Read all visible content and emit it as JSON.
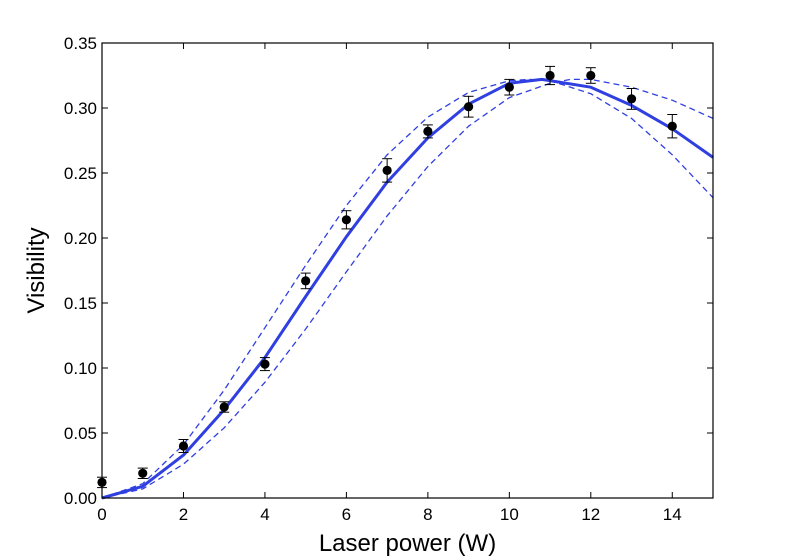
{
  "chart_data": {
    "type": "scatter",
    "xlabel": "Laser power (W)",
    "ylabel": "Visibility",
    "xlim": [
      0,
      15
    ],
    "ylim": [
      0,
      0.35
    ],
    "x_ticks": [
      0,
      2,
      4,
      6,
      8,
      10,
      12,
      14
    ],
    "y_ticks": [
      0.0,
      0.05,
      0.1,
      0.15,
      0.2,
      0.25,
      0.3,
      0.35
    ],
    "x_tick_labels": [
      "0",
      "2",
      "4",
      "6",
      "8",
      "10",
      "12",
      "14"
    ],
    "y_tick_labels": [
      "0.00",
      "0.05",
      "0.10",
      "0.15",
      "0.20",
      "0.25",
      "0.30",
      "0.35"
    ],
    "grid": false,
    "points": [
      {
        "x": 0,
        "y": 0.012,
        "err": 0.004
      },
      {
        "x": 1,
        "y": 0.019,
        "err": 0.004
      },
      {
        "x": 2,
        "y": 0.04,
        "err": 0.005
      },
      {
        "x": 3,
        "y": 0.07,
        "err": 0.004
      },
      {
        "x": 4,
        "y": 0.103,
        "err": 0.005
      },
      {
        "x": 5,
        "y": 0.167,
        "err": 0.006
      },
      {
        "x": 6,
        "y": 0.214,
        "err": 0.007
      },
      {
        "x": 7,
        "y": 0.252,
        "err": 0.009
      },
      {
        "x": 8,
        "y": 0.282,
        "err": 0.005
      },
      {
        "x": 9,
        "y": 0.301,
        "err": 0.008
      },
      {
        "x": 10,
        "y": 0.316,
        "err": 0.006
      },
      {
        "x": 11,
        "y": 0.325,
        "err": 0.007
      },
      {
        "x": 12,
        "y": 0.325,
        "err": 0.006
      },
      {
        "x": 13,
        "y": 0.307,
        "err": 0.008
      },
      {
        "x": 14,
        "y": 0.286,
        "err": 0.009
      }
    ],
    "curves": [
      {
        "style": "solid",
        "x": [
          0,
          1,
          2,
          3,
          4,
          5,
          6,
          7,
          8,
          9,
          10,
          10.8,
          12,
          13,
          14,
          15
        ],
        "y": [
          0.0,
          0.009,
          0.033,
          0.068,
          0.108,
          0.155,
          0.201,
          0.243,
          0.277,
          0.303,
          0.319,
          0.322,
          0.316,
          0.302,
          0.284,
          0.262
        ]
      },
      {
        "style": "dashed",
        "x": [
          0,
          1,
          2,
          3,
          4,
          5,
          6,
          7,
          8,
          9,
          10,
          10.5,
          11,
          12,
          13,
          14,
          15
        ],
        "y": [
          0.0,
          0.011,
          0.041,
          0.083,
          0.131,
          0.179,
          0.225,
          0.264,
          0.293,
          0.312,
          0.321,
          0.322,
          0.321,
          0.311,
          0.292,
          0.264,
          0.231
        ]
      },
      {
        "style": "dashed",
        "x": [
          0,
          1,
          2,
          3,
          4,
          5,
          6,
          7,
          8,
          9,
          10,
          11,
          11.5,
          12,
          13,
          14,
          15
        ],
        "y": [
          0.0,
          0.007,
          0.026,
          0.054,
          0.089,
          0.13,
          0.174,
          0.217,
          0.255,
          0.286,
          0.308,
          0.319,
          0.322,
          0.322,
          0.316,
          0.306,
          0.292
        ]
      }
    ],
    "colors": {
      "curve": "#2f3fe0",
      "points": "#000000",
      "axes": "#000000"
    }
  }
}
